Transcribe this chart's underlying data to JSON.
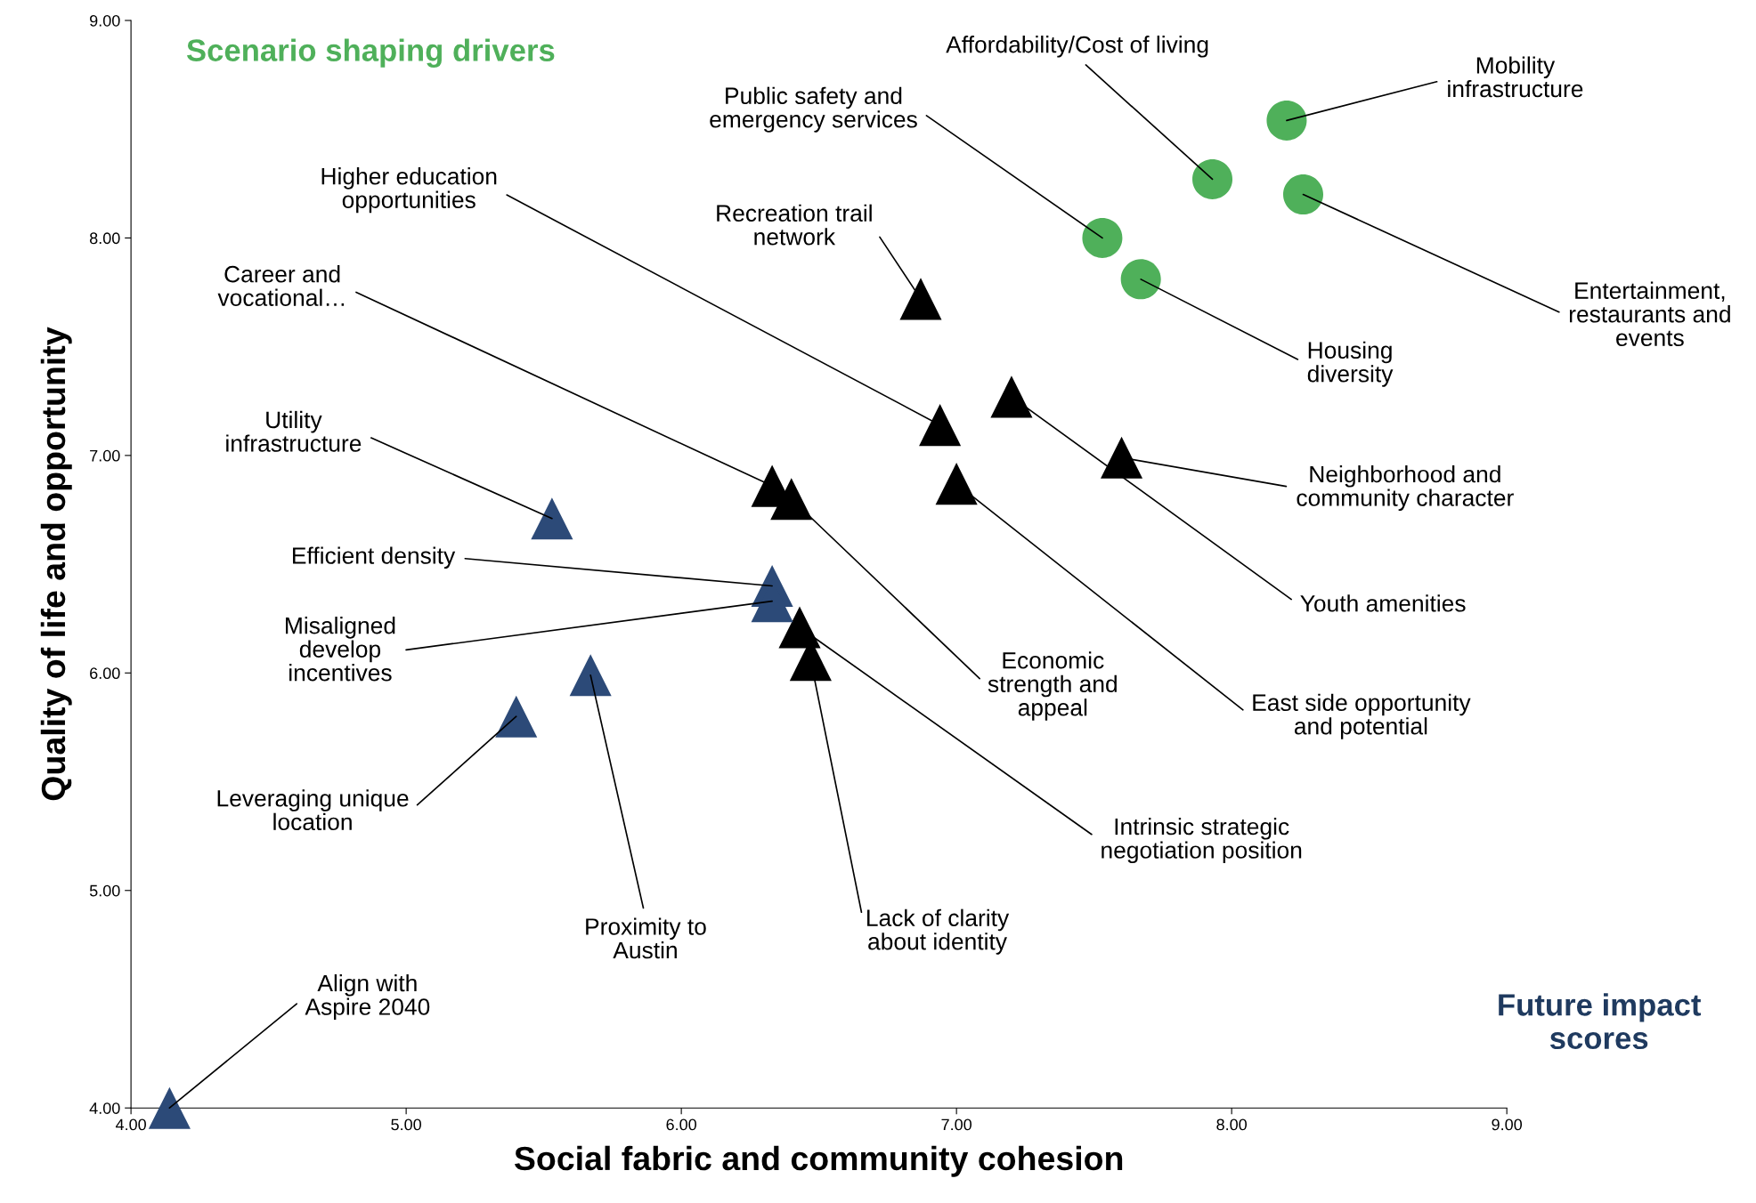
{
  "chart_data": {
    "type": "scatter",
    "title": "Scenario shaping drivers",
    "xlabel": "Social fabric and community cohesion",
    "ylabel": "Quality of life and opportunity",
    "xlim": [
      4,
      9
    ],
    "ylim": [
      4,
      9
    ],
    "xticks": [
      {
        "value": 4,
        "label": "4.00"
      },
      {
        "value": 5,
        "label": "5.00"
      },
      {
        "value": 6,
        "label": "6.00"
      },
      {
        "value": 7,
        "label": "7.00"
      },
      {
        "value": 8,
        "label": "8.00"
      },
      {
        "value": 9,
        "label": "9.00"
      }
    ],
    "yticks": [
      {
        "value": 4,
        "label": "4.00"
      },
      {
        "value": 5,
        "label": "5.00"
      },
      {
        "value": 6,
        "label": "6.00"
      },
      {
        "value": 7,
        "label": "7.00"
      },
      {
        "value": 8,
        "label": "8.00"
      },
      {
        "value": 9,
        "label": "9.00"
      }
    ],
    "grid": false,
    "series": [
      {
        "color": "#4fb05a",
        "marker": "circle",
        "x": [
          8.2,
          7.93,
          8.26,
          7.53,
          7.67
        ],
        "values": [
          8.54,
          8.27,
          8.2,
          8.0,
          7.81
        ]
      },
      {
        "color": "#000000",
        "marker": "triangle",
        "x": [
          6.87,
          6.94,
          7.2,
          7.6,
          7.0,
          6.33,
          6.4,
          6.43,
          6.47
        ],
        "values": [
          7.72,
          7.14,
          7.27,
          6.99,
          6.87,
          6.86,
          6.8,
          6.21,
          6.06
        ]
      },
      {
        "color": "#2c4a78",
        "marker": "triangle",
        "x": [
          5.53,
          6.33,
          6.33,
          5.67,
          5.4,
          4.14
        ],
        "values": [
          6.71,
          6.4,
          6.33,
          5.99,
          5.8,
          4.0
        ]
      }
    ],
    "annotations": [
      {
        "text": "Mobility\ninfrastructure",
        "x": 8.2,
        "y": 8.54
      },
      {
        "text": "Affordability/Cost of living",
        "x": 7.93,
        "y": 8.27
      },
      {
        "text": "Entertainment,\nrestaurants and\nevents",
        "x": 8.26,
        "y": 8.2
      },
      {
        "text": "Public safety and\nemergency services",
        "x": 7.53,
        "y": 8.0
      },
      {
        "text": "Housing\ndiversity",
        "x": 7.67,
        "y": 7.81
      },
      {
        "text": "Recreation trail\nnetwork",
        "x": 6.87,
        "y": 7.72
      },
      {
        "text": "Higher education\nopportunities",
        "x": 6.94,
        "y": 7.14
      },
      {
        "text": "Youth amenities",
        "x": 7.2,
        "y": 7.27
      },
      {
        "text": "Neighborhood and\ncommunity character",
        "x": 7.6,
        "y": 6.99
      },
      {
        "text": "East side opportunity\nand potential",
        "x": 7.0,
        "y": 6.87
      },
      {
        "text": "Career and\nvocational…",
        "x": 6.33,
        "y": 6.86
      },
      {
        "text": "Economic\nstrength and\nappeal",
        "x": 6.4,
        "y": 6.8
      },
      {
        "text": "Intrinsic strategic\nnegotiation position",
        "x": 6.43,
        "y": 6.21
      },
      {
        "text": "Lack of clarity\nabout identity",
        "x": 6.47,
        "y": 6.06
      },
      {
        "text": "Utility\ninfrastructure",
        "x": 5.53,
        "y": 6.71
      },
      {
        "text": "Efficient density",
        "x": 6.33,
        "y": 6.4
      },
      {
        "text": "Misaligned\ndevelop\nincentives",
        "x": 6.33,
        "y": 6.33
      },
      {
        "text": "Proximity to\nAustin",
        "x": 5.67,
        "y": 5.99
      },
      {
        "text": "Leveraging unique\nlocation",
        "x": 5.4,
        "y": 5.8
      },
      {
        "text": "Align with\nAspire 2040",
        "x": 4.14,
        "y": 4.0
      },
      "Future impact\nscores"
    ]
  }
}
